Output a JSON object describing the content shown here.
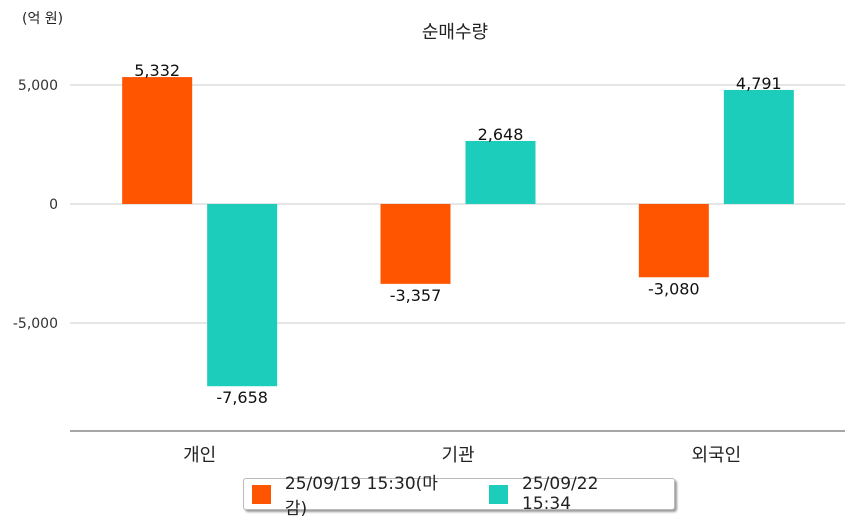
{
  "chart_data": {
    "type": "bar",
    "title": "순매수량",
    "unit_label": "(억 원)",
    "xlabel": "",
    "ylabel": "",
    "categories": [
      "개인",
      "기관",
      "외국인"
    ],
    "series": [
      {
        "name": "25/09/19 15:30(마감)",
        "color": "#ff5500",
        "values": [
          5332,
          -3357,
          -3080
        ],
        "labels": [
          "5,332",
          "-3,357",
          "-3,080"
        ]
      },
      {
        "name": "25/09/22 15:34",
        "color": "#1ccdbc",
        "values": [
          -7658,
          2648,
          4791
        ],
        "labels": [
          "-7,658",
          "2,648",
          "4,791"
        ]
      }
    ],
    "yticks": [
      5000,
      0,
      -5000
    ],
    "ytick_labels": [
      "5,000",
      "0",
      "-5,000"
    ],
    "ylim": [
      -9540,
      6890
    ],
    "grid": true,
    "legend": "bottom"
  }
}
